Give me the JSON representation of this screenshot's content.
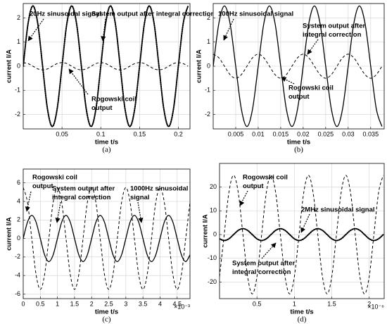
{
  "chart_data": [
    {
      "type": "line",
      "caption": "(a)",
      "xlabel": "time t/s",
      "ylabel": "current I/A",
      "grid": true,
      "xlim": [
        0,
        0.215
      ],
      "ylim": [
        -2.6,
        2.6
      ],
      "xticks": [
        0.05,
        0.1,
        0.15,
        0.2
      ],
      "yticks": [
        -2,
        -1,
        0,
        1,
        2
      ],
      "x": [
        0,
        0.00625,
        0.0125,
        0.01875,
        0.025,
        0.03125,
        0.0375,
        0.04375,
        0.05,
        0.05625,
        0.0625,
        0.06875,
        0.075,
        0.08125,
        0.0875,
        0.09375,
        0.1,
        0.10625,
        0.1125,
        0.11875,
        0.125,
        0.13125,
        0.1375,
        0.14375,
        0.15,
        0.15625,
        0.1625,
        0.16875,
        0.175,
        0.18125,
        0.1875,
        0.19375,
        0.2,
        0.20625,
        0.2125
      ],
      "series": [
        {
          "color": "#000000",
          "style": "solid",
          "values": [
            0,
            1.77,
            2.5,
            1.77,
            0,
            -1.77,
            -2.5,
            -1.77,
            0,
            1.77,
            2.5,
            1.77,
            0,
            -1.77,
            -2.5,
            -1.77,
            0,
            1.77,
            2.5,
            1.77,
            0,
            -1.77,
            -2.5,
            -1.77,
            0,
            1.77,
            2.5,
            1.77,
            0,
            -1.77,
            -2.5,
            -1.77,
            0,
            1.77,
            2.5
          ]
        },
        {
          "color": "#000000",
          "style": "dotted",
          "values": [
            0,
            1.77,
            2.5,
            1.77,
            0,
            -1.77,
            -2.5,
            -1.77,
            0,
            1.77,
            2.5,
            1.77,
            0,
            -1.77,
            -2.5,
            -1.77,
            0,
            1.77,
            2.5,
            1.77,
            0,
            -1.77,
            -2.5,
            -1.77,
            0,
            1.77,
            2.5,
            1.77,
            0,
            -1.77,
            -2.5,
            -1.77,
            0,
            1.77,
            2.5
          ]
        },
        {
          "color": "#000000",
          "style": "dashed",
          "values": [
            0.15,
            0.11,
            0,
            -0.11,
            -0.15,
            -0.11,
            0,
            0.11,
            0.15,
            0.11,
            0,
            -0.11,
            -0.15,
            -0.11,
            0,
            0.11,
            0.15,
            0.11,
            0,
            -0.11,
            -0.15,
            -0.11,
            0,
            0.11,
            0.15,
            0.11,
            0,
            -0.11,
            -0.15,
            -0.11,
            0,
            0.11,
            0.15,
            0.11,
            0
          ]
        }
      ],
      "annotations": [
        [
          "20Hz sinusoidal signal"
        ],
        [
          "System output after integral correction"
        ],
        [
          "Rogowski coil",
          "output"
        ]
      ]
    },
    {
      "type": "line",
      "caption": "(b)",
      "xlabel": "time t/s",
      "ylabel": "current I/A",
      "grid": true,
      "xlim": [
        0,
        0.038
      ],
      "ylim": [
        -2.6,
        2.6
      ],
      "xticks": [
        0.005,
        0.01,
        0.015,
        0.02,
        0.025,
        0.03,
        0.035
      ],
      "yticks": [
        -2,
        -1,
        0,
        1,
        2
      ],
      "x": [
        0,
        0.00125,
        0.0025,
        0.00375,
        0.005,
        0.00625,
        0.0075,
        0.00875,
        0.01,
        0.01125,
        0.0125,
        0.01375,
        0.015,
        0.01625,
        0.0175,
        0.01875,
        0.02,
        0.02125,
        0.0225,
        0.02375,
        0.025,
        0.02625,
        0.0275,
        0.02875,
        0.03,
        0.03125,
        0.0325,
        0.03375,
        0.035,
        0.03625,
        0.0375
      ],
      "series": [
        {
          "color": "#000000",
          "style": "solid",
          "values": [
            0,
            1.77,
            2.5,
            1.77,
            0,
            -1.77,
            -2.5,
            -1.77,
            0,
            1.77,
            2.5,
            1.77,
            0,
            -1.77,
            -2.5,
            -1.77,
            0,
            1.77,
            2.5,
            1.77,
            0,
            -1.77,
            -2.5,
            -1.77,
            0,
            1.77,
            2.5,
            1.77,
            0,
            -1.77,
            -2.5
          ]
        },
        {
          "color": "#000000",
          "style": "dashed",
          "values": [
            0.5,
            0.35,
            0,
            -0.35,
            -0.5,
            -0.35,
            0,
            0.35,
            0.5,
            0.35,
            0,
            -0.35,
            -0.5,
            -0.35,
            0,
            0.35,
            0.5,
            0.35,
            0,
            -0.35,
            -0.5,
            -0.35,
            0,
            0.35,
            0.5,
            0.35,
            0,
            -0.35,
            -0.5,
            -0.35,
            0
          ]
        }
      ],
      "annotations": [
        [
          "100Hz sinusoidal signal"
        ],
        [
          "System output after",
          "integral correction"
        ],
        [
          "Rogowski coil",
          "output"
        ]
      ]
    },
    {
      "type": "line",
      "caption": "(c)",
      "xlabel": "time t/s",
      "ylabel": "current I/A",
      "grid": true,
      "x_exponent_label": "×10⁻³",
      "xlim": [
        0,
        4.875
      ],
      "ylim": [
        -6.5,
        7.5
      ],
      "xticks": [
        0,
        0.5,
        1,
        1.5,
        2,
        2.5,
        3,
        3.5,
        4,
        4.5
      ],
      "yticks": [
        -6,
        -4,
        -2,
        0,
        2,
        4,
        6
      ],
      "x": [
        0,
        0.125,
        0.25,
        0.375,
        0.5,
        0.625,
        0.75,
        0.875,
        1,
        1.125,
        1.25,
        1.375,
        1.5,
        1.625,
        1.75,
        1.875,
        2,
        2.125,
        2.25,
        2.375,
        2.5,
        2.625,
        2.75,
        2.875,
        3,
        3.125,
        3.25,
        3.375,
        3.5,
        3.625,
        3.75,
        3.875,
        4,
        4.125,
        4.25,
        4.375,
        4.5,
        4.625,
        4.75,
        4.875
      ],
      "series": [
        {
          "color": "#000000",
          "style": "solid",
          "values": [
            0,
            1.77,
            2.5,
            1.77,
            0,
            -1.77,
            -2.5,
            -1.77,
            0,
            1.77,
            2.5,
            1.77,
            0,
            -1.77,
            -2.5,
            -1.77,
            0,
            1.77,
            2.5,
            1.77,
            0,
            -1.77,
            -2.5,
            -1.77,
            0,
            1.77,
            2.5,
            1.77,
            0,
            -1.77,
            -2.5,
            -1.77,
            0,
            1.77,
            2.5,
            1.77,
            0,
            -1.77,
            -2.5,
            -1.77
          ]
        },
        {
          "color": "#000000",
          "style": "dashed",
          "values": [
            5.5,
            3.89,
            0,
            -3.89,
            -5.5,
            -3.89,
            0,
            3.89,
            5.5,
            3.89,
            0,
            -3.89,
            -5.5,
            -3.89,
            0,
            3.89,
            5.5,
            3.89,
            0,
            -3.89,
            -5.5,
            -3.89,
            0,
            3.89,
            5.5,
            3.89,
            0,
            -3.89,
            -5.5,
            -3.89,
            0,
            3.89,
            5.5,
            3.89,
            0,
            -3.89,
            -5.5,
            -3.89,
            0,
            3.89
          ]
        }
      ],
      "annotations": [
        [
          "Rogowski coil",
          "output"
        ],
        [
          "System output after",
          "integral correction"
        ],
        [
          "1000Hz sinusoidal",
          "signal"
        ]
      ]
    },
    {
      "type": "line",
      "caption": "(d)",
      "xlabel": "time t/s",
      "ylabel": "current I/A",
      "grid": true,
      "x_exponent_label": "×10⁻⁶",
      "xlim": [
        0,
        2.2
      ],
      "ylim": [
        -27,
        30
      ],
      "xticks": [
        0.5,
        1,
        1.5,
        2
      ],
      "yticks": [
        -20,
        -10,
        0,
        10,
        20
      ],
      "x": [
        0,
        0.0625,
        0.125,
        0.1875,
        0.25,
        0.3125,
        0.375,
        0.4375,
        0.5,
        0.5625,
        0.625,
        0.6875,
        0.75,
        0.8125,
        0.875,
        0.9375,
        1,
        1.0625,
        1.125,
        1.1875,
        1.25,
        1.3125,
        1.375,
        1.4375,
        1.5,
        1.5625,
        1.625,
        1.6875,
        1.75,
        1.8125,
        1.875,
        1.9375,
        2,
        2.0625,
        2.125,
        2.1875
      ],
      "series": [
        {
          "color": "#000000",
          "style": "dashed",
          "values": [
            -17.7,
            0,
            17.7,
            25,
            17.7,
            0,
            -17.7,
            -25,
            -17.7,
            0,
            17.7,
            25,
            17.7,
            0,
            -17.7,
            -25,
            -17.7,
            0,
            17.7,
            25,
            17.7,
            0,
            -17.7,
            -25,
            -17.7,
            0,
            17.7,
            25,
            17.7,
            0,
            -17.7,
            -25,
            -17.7,
            0,
            17.7,
            25
          ]
        },
        {
          "color": "#000000",
          "style": "solid",
          "values": [
            -1.77,
            -2.5,
            -1.77,
            0,
            1.77,
            2.5,
            1.77,
            0,
            -1.77,
            -2.5,
            -1.77,
            0,
            1.77,
            2.5,
            1.77,
            0,
            -1.77,
            -2.5,
            -1.77,
            0,
            1.77,
            2.5,
            1.77,
            0,
            -1.77,
            -2.5,
            -1.77,
            0,
            1.77,
            2.5,
            1.77,
            0,
            -1.77,
            -2.5,
            -1.77,
            0
          ]
        },
        {
          "color": "#000000",
          "style": "dotted",
          "values": [
            -1.77,
            -2.5,
            -1.77,
            0,
            1.77,
            2.5,
            1.77,
            0,
            -1.77,
            -2.5,
            -1.77,
            0,
            1.77,
            2.5,
            1.77,
            0,
            -1.77,
            -2.5,
            -1.77,
            0,
            1.77,
            2.5,
            1.77,
            0,
            -1.77,
            -2.5,
            -1.77,
            0,
            1.77,
            2.5,
            1.77,
            0,
            -1.77,
            -2.5,
            -1.77,
            0
          ]
        }
      ],
      "annotations": [
        [
          "Rogowski coil",
          "output"
        ],
        [
          "2MHz sinusoidal signal"
        ],
        [
          "System output after",
          "integral correction"
        ]
      ]
    }
  ]
}
